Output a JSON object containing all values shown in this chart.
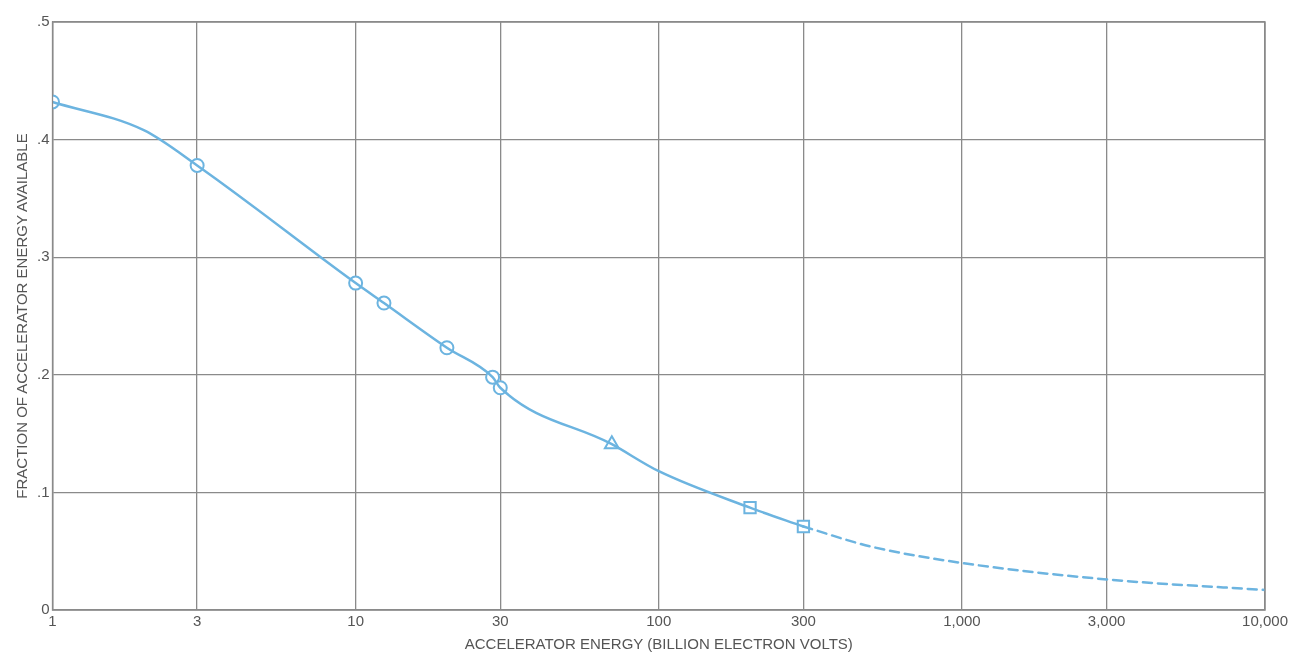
{
  "chart_data": {
    "type": "line",
    "xlabel": "ACCELERATOR ENERGY (BILLION ELECTRON VOLTS)",
    "ylabel": "FRACTION OF ACCELERATOR ENERGY AVAILABLE",
    "log": "x",
    "grid": true,
    "legend": false,
    "xlim": [
      1,
      10000
    ],
    "xticks": [
      1,
      3,
      10,
      30,
      100,
      300,
      {
        "value": 1000,
        "label": "1,000"
      },
      {
        "value": 3000,
        "label": "3,000"
      },
      {
        "value": 10000,
        "label": "10,000"
      }
    ],
    "ylim": [
      0,
      0.5
    ],
    "yticks": [
      0,
      {
        "value": 0.1,
        "label": ".1"
      },
      {
        "value": 0.2,
        "label": ".2"
      },
      {
        "value": 0.3,
        "label": ".3"
      },
      {
        "value": 0.4,
        "label": ".4"
      },
      {
        "value": 0.5,
        "label": ".5"
      }
    ],
    "series": [
      {
        "type": "line",
        "color": "#6cb4e0",
        "line_style": "solid",
        "marker": "none",
        "x": [
          1,
          2,
          3,
          10,
          12.4,
          20,
          28.3,
          30,
          70,
          100,
          200,
          300
        ],
        "values": [
          0.432,
          0.408,
          0.378,
          0.278,
          0.261,
          0.223,
          0.198,
          0.189,
          0.141,
          0.118,
          0.087,
          0.071
        ]
      },
      {
        "type": "line",
        "color": "#6cb4e0",
        "line_style": "dashed",
        "marker": "none",
        "x": [
          300,
          500,
          1000,
          3000,
          10000
        ],
        "values": [
          0.071,
          0.054,
          0.04,
          0.026,
          0.017
        ]
      },
      {
        "type": "scatter",
        "color": "#6cb4e0",
        "marker": "circle",
        "x": [
          1,
          3,
          10,
          12.4,
          20,
          28.3,
          30
        ],
        "values": [
          0.432,
          0.378,
          0.278,
          0.261,
          0.223,
          0.198,
          0.189
        ]
      },
      {
        "type": "scatter",
        "color": "#6cb4e0",
        "marker": "triangle",
        "x": [
          70
        ],
        "values": [
          0.141
        ]
      },
      {
        "type": "scatter",
        "color": "#6cb4e0",
        "marker": "square",
        "x": [
          200,
          300
        ],
        "values": [
          0.087,
          0.071
        ]
      }
    ]
  }
}
